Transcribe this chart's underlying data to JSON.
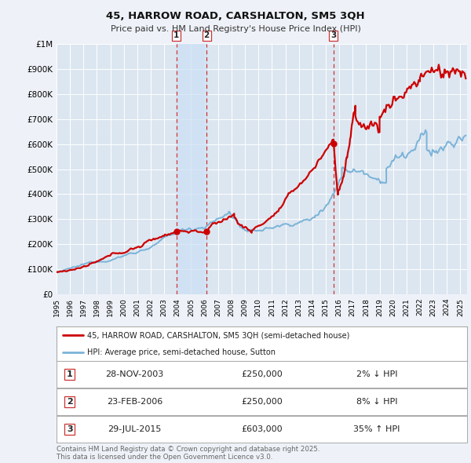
{
  "title": "45, HARROW ROAD, CARSHALTON, SM5 3QH",
  "subtitle": "Price paid vs. HM Land Registry's House Price Index (HPI)",
  "background_color": "#eef2f8",
  "plot_bg_color": "#dce6f0",
  "grid_color": "#ffffff",
  "legend_label_red": "45, HARROW ROAD, CARSHALTON, SM5 3QH (semi-detached house)",
  "legend_label_blue": "HPI: Average price, semi-detached house, Sutton",
  "footer_line1": "Contains HM Land Registry data © Crown copyright and database right 2025.",
  "footer_line2": "This data is licensed under the Open Government Licence v3.0.",
  "sale_events": [
    {
      "id": 1,
      "date_str": "28-NOV-2003",
      "price": 250000,
      "hpi_pct": "2%",
      "direction": "↓",
      "x": 2003.91
    },
    {
      "id": 2,
      "date_str": "23-FEB-2006",
      "price": 250000,
      "hpi_pct": "8%",
      "direction": "↓",
      "x": 2006.15
    },
    {
      "id": 3,
      "date_str": "29-JUL-2015",
      "price": 603000,
      "hpi_pct": "35%",
      "direction": "↑",
      "x": 2015.58
    }
  ],
  "hpi_line_color": "#7ab3d8",
  "price_line_color": "#cc0000",
  "ylim": [
    0,
    1000000
  ],
  "yticks": [
    0,
    100000,
    200000,
    300000,
    400000,
    500000,
    600000,
    700000,
    800000,
    900000,
    1000000
  ],
  "ytick_labels": [
    "£0",
    "£100K",
    "£200K",
    "£300K",
    "£400K",
    "£500K",
    "£600K",
    "£700K",
    "£800K",
    "£900K",
    "£1M"
  ],
  "xlim": [
    1995.0,
    2025.5
  ],
  "xticks": [
    1995,
    1996,
    1997,
    1998,
    1999,
    2000,
    2001,
    2002,
    2003,
    2004,
    2005,
    2006,
    2007,
    2008,
    2009,
    2010,
    2011,
    2012,
    2013,
    2014,
    2015,
    2016,
    2017,
    2018,
    2019,
    2020,
    2021,
    2022,
    2023,
    2024,
    2025
  ],
  "span_color": "#ccdff5",
  "vline_color": "#cc3333",
  "dot_color": "#cc0000",
  "sale_prices": [
    250000,
    250000,
    603000
  ]
}
